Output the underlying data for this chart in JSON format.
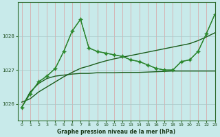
{
  "title": "Graphe pression niveau de la mer (hPa)",
  "bg_color": "#c8eaea",
  "grid_color_v": "#e8b0b0",
  "grid_color_h": "#b8d8d8",
  "xlim": [
    -0.5,
    23
  ],
  "ylim": [
    1025.5,
    1029.0
  ],
  "yticks": [
    1026,
    1027,
    1028
  ],
  "xticks": [
    0,
    1,
    2,
    3,
    4,
    5,
    6,
    7,
    8,
    9,
    10,
    11,
    12,
    13,
    14,
    15,
    16,
    17,
    18,
    19,
    20,
    21,
    22,
    23
  ],
  "series": [
    {
      "x": [
        0,
        1,
        2,
        3,
        4,
        5,
        6,
        7,
        8,
        9,
        10,
        11,
        12,
        13,
        14,
        15,
        16,
        17,
        18,
        19,
        20,
        21,
        22,
        23
      ],
      "y": [
        1025.9,
        1026.35,
        1026.6,
        1026.75,
        1026.82,
        1026.85,
        1026.88,
        1026.9,
        1026.9,
        1026.92,
        1026.92,
        1026.92,
        1026.93,
        1026.93,
        1026.93,
        1026.94,
        1026.95,
        1026.96,
        1026.97,
        1026.97,
        1026.97,
        1026.97,
        1026.97,
        1026.97
      ],
      "color": "#1a5c1a",
      "lw": 1.0,
      "marker": null,
      "ms": 0
    },
    {
      "x": [
        0,
        1,
        2,
        3,
        4,
        5,
        6,
        7,
        8,
        9,
        10,
        11,
        12,
        13,
        14,
        15,
        16,
        17,
        18,
        19,
        20,
        21,
        22,
        23
      ],
      "y": [
        1026.05,
        1026.15,
        1026.35,
        1026.5,
        1026.65,
        1026.8,
        1026.93,
        1027.05,
        1027.12,
        1027.2,
        1027.27,
        1027.33,
        1027.38,
        1027.43,
        1027.48,
        1027.53,
        1027.58,
        1027.63,
        1027.68,
        1027.73,
        1027.78,
        1027.87,
        1027.98,
        1028.1
      ],
      "color": "#1a5c1a",
      "lw": 1.0,
      "marker": null,
      "ms": 0
    },
    {
      "x": [
        0,
        1,
        2,
        3,
        4,
        5,
        6,
        7,
        8,
        9,
        10,
        11,
        12,
        13,
        14,
        15,
        16,
        17,
        18,
        19,
        20,
        21,
        22,
        23
      ],
      "y": [
        1025.9,
        1026.3,
        1026.65,
        1026.82,
        1027.05,
        1027.55,
        1028.15,
        1028.5,
        1027.65,
        1027.55,
        1027.5,
        1027.45,
        1027.4,
        1027.3,
        1027.25,
        1027.15,
        1027.05,
        1027.0,
        1027.0,
        1027.25,
        1027.3,
        1027.55,
        1028.08,
        1028.65
      ],
      "color": "#1d6e1d",
      "lw": 1.0,
      "marker": "+",
      "ms": 4.0
    },
    {
      "x": [
        0,
        1,
        2,
        3,
        4,
        5,
        6,
        7,
        8,
        9,
        10,
        11,
        12,
        13,
        14,
        15,
        16,
        17,
        18,
        19,
        20,
        21,
        22,
        23
      ],
      "y": [
        1025.9,
        1026.3,
        1026.65,
        1026.82,
        1027.05,
        1027.55,
        1028.15,
        1028.5,
        1027.65,
        1027.55,
        1027.5,
        1027.45,
        1027.4,
        1027.3,
        1027.25,
        1027.15,
        1027.05,
        1027.0,
        1027.0,
        1027.25,
        1027.3,
        1027.55,
        1028.08,
        1028.65
      ],
      "color": "#2e8b2e",
      "lw": 0.7,
      "marker": "D",
      "ms": 2.0
    }
  ]
}
